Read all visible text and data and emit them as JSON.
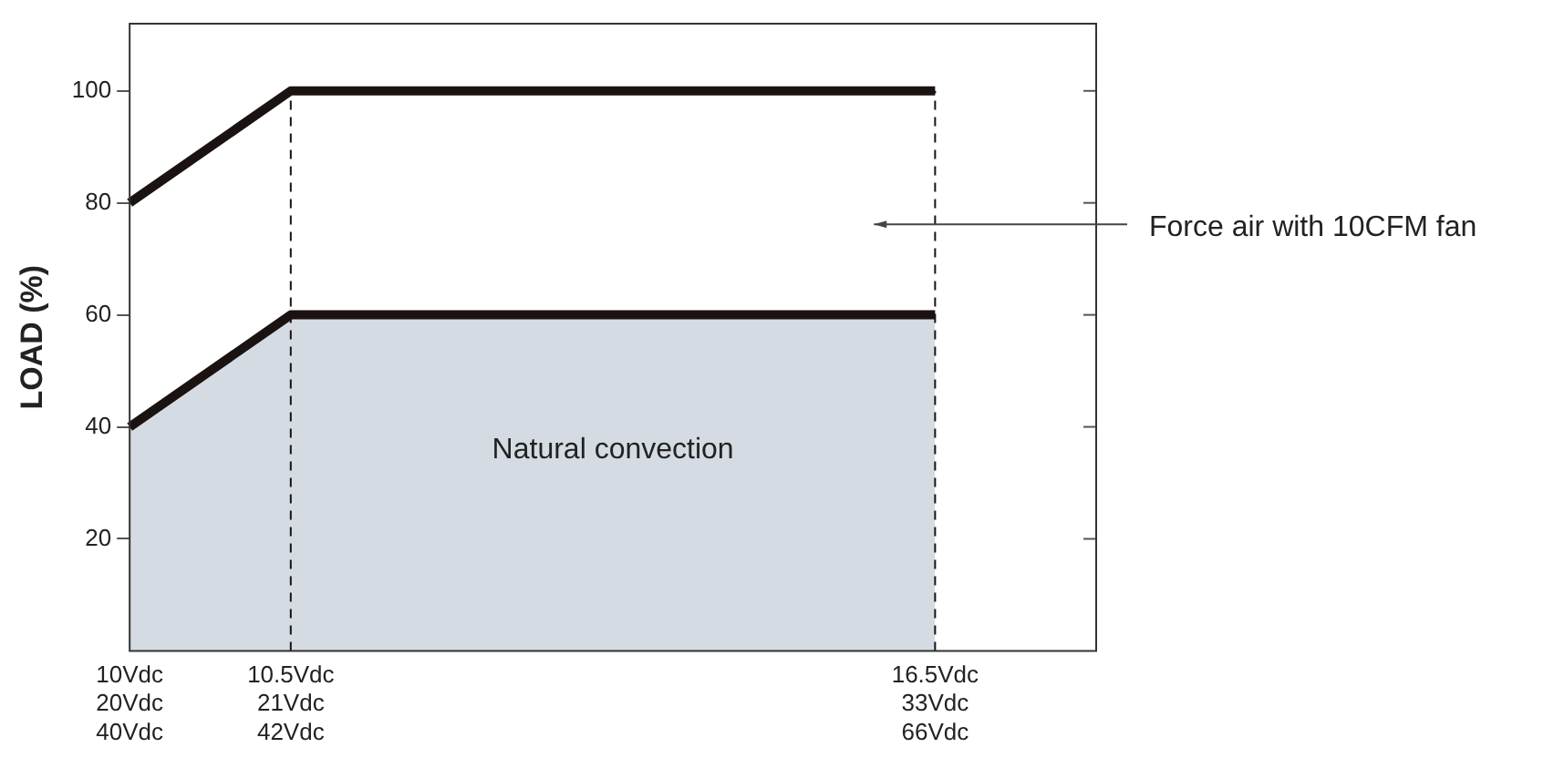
{
  "chart_data": {
    "type": "line",
    "ylabel": "LOAD (%)",
    "categories": [
      "10Vdc\n20Vdc\n40Vdc",
      "10.5Vdc\n21Vdc\n42Vdc",
      null,
      null,
      null,
      "16.5Vdc\n33Vdc\n66Vdc",
      null
    ],
    "series": [
      {
        "color": "#1a1311",
        "values": [
          80,
          100,
          100,
          100,
          100,
          100,
          null
        ]
      },
      {
        "type": "area",
        "color": "#d5dbe2",
        "values": [
          40,
          60,
          60,
          60,
          60,
          60,
          null
        ]
      }
    ],
    "ylim": [
      0,
      112
    ],
    "yticks": [
      20,
      40,
      60,
      80,
      100
    ],
    "grid": false,
    "legend": false,
    "marker": "none",
    "line_style": "solid",
    "ref_lines": [
      {
        "axis": "x",
        "value": "10.5Vdc\n21Vdc\n42Vdc",
        "line_style": "dashed",
        "color": "#1a1311"
      },
      {
        "axis": "x",
        "value": "16.5Vdc\n33Vdc\n66Vdc",
        "line_style": "dashed",
        "color": "#1a1311"
      }
    ],
    "annotations": [
      "Natural convection",
      "Force air with 10CFM fan"
    ]
  }
}
